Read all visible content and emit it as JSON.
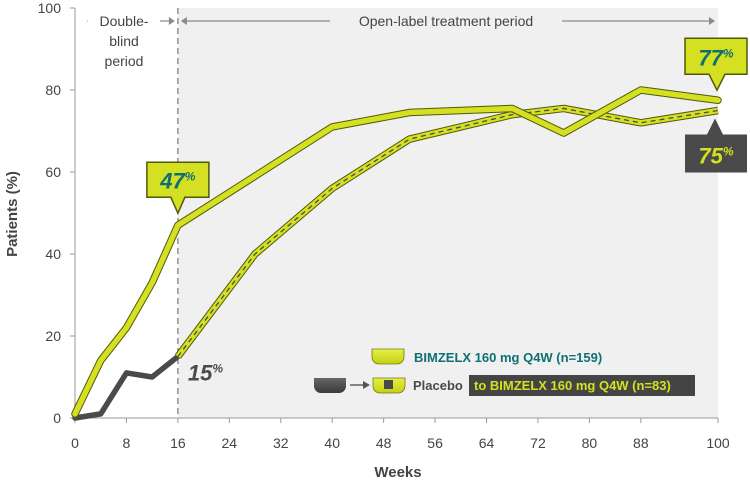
{
  "chart_data": {
    "type": "line",
    "title": "",
    "xlabel": "Weeks",
    "ylabel": "Patients (%)",
    "xlim": [
      0,
      100
    ],
    "ylim": [
      0,
      100
    ],
    "xticks": [
      0,
      8,
      16,
      24,
      32,
      40,
      48,
      56,
      64,
      72,
      80,
      88,
      100
    ],
    "yticks": [
      0,
      20,
      40,
      60,
      80,
      100
    ],
    "grid": false,
    "periods": {
      "double_blind": {
        "label_line1": "Double-",
        "label_line2": "blind",
        "label_line3": "period",
        "x_range": [
          0,
          16
        ]
      },
      "open_label": {
        "label": "Open-label treatment period",
        "x_range": [
          16,
          100
        ]
      }
    },
    "series": [
      {
        "name": "BIMZELX 160 mg Q4W (n=159)",
        "x": [
          0,
          4,
          8,
          12,
          16,
          28,
          40,
          52,
          68,
          76,
          88,
          100
        ],
        "values": [
          1,
          14,
          22,
          33,
          47,
          59,
          71,
          74.5,
          75.5,
          69.5,
          80,
          77.5
        ]
      },
      {
        "name": "Placebo to BIMZELX 160 mg Q4W (n=83)",
        "legend_prefix": "Placebo",
        "legend_suffix": "to BIMZELX 160 mg Q4W (n=83)",
        "placebo_x": [
          0,
          4,
          8,
          12,
          16
        ],
        "placebo_values": [
          0,
          1,
          11,
          10,
          15
        ],
        "x": [
          16,
          28,
          40,
          52,
          68,
          76,
          88,
          100
        ],
        "values": [
          15,
          40,
          56,
          68,
          74,
          75.5,
          72,
          75
        ]
      }
    ],
    "annotations": [
      {
        "id": "bim-16",
        "num": "47",
        "unit": "%",
        "x": 16,
        "y": 47
      },
      {
        "id": "bim-100",
        "num": "77",
        "unit": "%",
        "x": 100,
        "y": 77.5
      },
      {
        "id": "pbo-16",
        "num": "15",
        "unit": "%",
        "x": 16,
        "y": 15
      },
      {
        "id": "pbo-100",
        "num": "75",
        "unit": "%",
        "x": 100,
        "y": 75
      }
    ],
    "colors": {
      "green": "#d4e021",
      "green_dark": "#505a0a",
      "grey": "#4a4a4a",
      "teal": "#0f6f73",
      "shade": "#f0f0f0"
    }
  }
}
